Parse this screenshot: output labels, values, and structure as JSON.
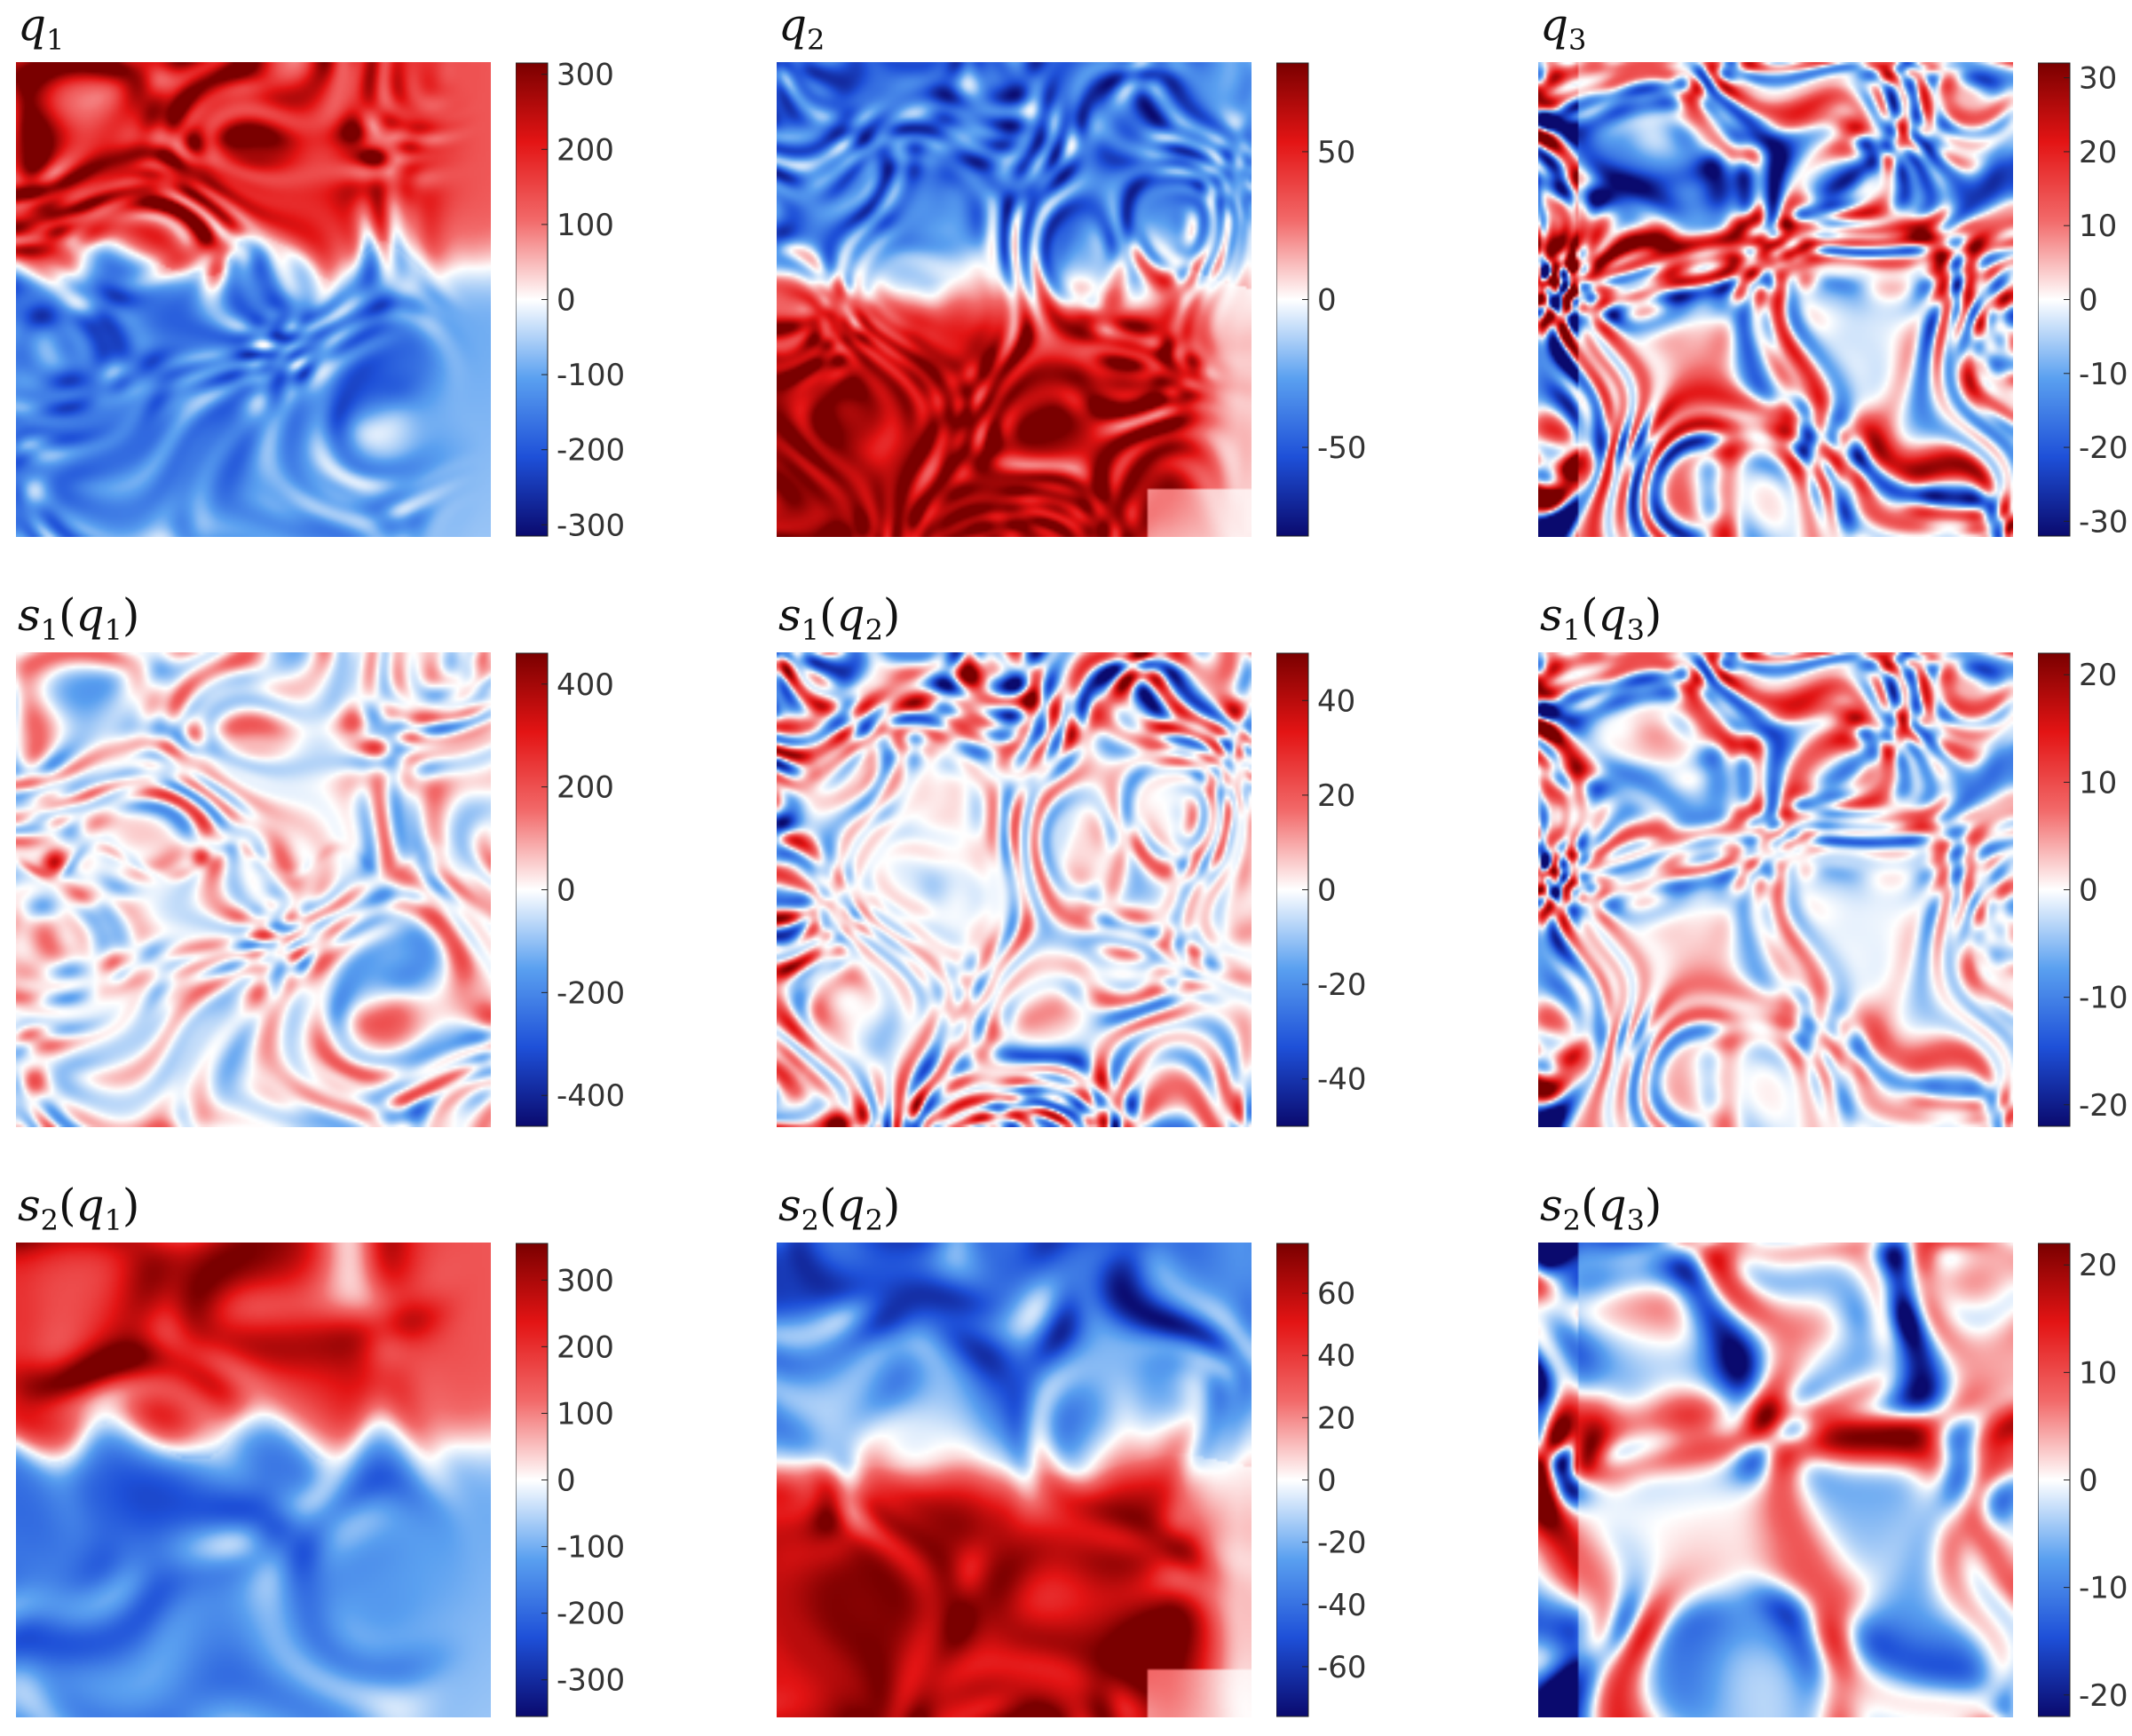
{
  "colormap": {
    "name": "seismic-like diverging",
    "stops": [
      "#0a0a6e",
      "#1e50d8",
      "#5aa0f0",
      "#ffffff",
      "#f26a6a",
      "#e31414",
      "#7a0000"
    ]
  },
  "chart_data": [
    {
      "id": "q1",
      "type": "heatmap",
      "title": "q1",
      "title_main": "q",
      "title_sub": "1",
      "clim": [
        -315,
        315
      ],
      "ticks": [
        300,
        200,
        100,
        0,
        -100,
        -200,
        -300
      ],
      "tick_labels": [
        "300",
        "200",
        "100",
        "0",
        "-100",
        "-200",
        "-300"
      ],
      "pattern": "upper-positive-band",
      "detail": "fine"
    },
    {
      "id": "q2",
      "type": "heatmap",
      "title": "q2",
      "title_main": "q",
      "title_sub": "2",
      "clim": [
        -80,
        80
      ],
      "ticks": [
        50,
        0,
        -50
      ],
      "tick_labels": [
        "50",
        "0",
        "-50"
      ],
      "pattern": "upper-negative-lower-positive",
      "detail": "fine"
    },
    {
      "id": "q3",
      "type": "heatmap",
      "title": "q3",
      "title_main": "q",
      "title_sub": "3",
      "clim": [
        -32,
        32
      ],
      "ticks": [
        30,
        20,
        10,
        0,
        -10,
        -20,
        -30
      ],
      "tick_labels": [
        "30",
        "20",
        "10",
        "0",
        "-10",
        "-20",
        "-30"
      ],
      "pattern": "mixed-eddies",
      "detail": "fine"
    },
    {
      "id": "s1q1",
      "type": "heatmap",
      "title": "s1(q1)",
      "title_main": "s",
      "title_sub": "1",
      "title_arg": "q",
      "title_arg_sub": "1",
      "clim": [
        -460,
        460
      ],
      "ticks": [
        400,
        200,
        0,
        -200,
        -400
      ],
      "tick_labels": [
        "400",
        "200",
        "0",
        "-200",
        "-400"
      ],
      "pattern": "small-scale-weak",
      "detail": "fine"
    },
    {
      "id": "s1q2",
      "type": "heatmap",
      "title": "s1(q2)",
      "title_main": "s",
      "title_sub": "1",
      "title_arg": "q",
      "title_arg_sub": "2",
      "clim": [
        -50,
        50
      ],
      "ticks": [
        40,
        20,
        0,
        -20,
        -40
      ],
      "tick_labels": [
        "40",
        "20",
        "0",
        "-20",
        "-40"
      ],
      "pattern": "small-scale-edges",
      "detail": "fine"
    },
    {
      "id": "s1q3",
      "type": "heatmap",
      "title": "s1(q3)",
      "title_main": "s",
      "title_sub": "1",
      "title_arg": "q",
      "title_arg_sub": "3",
      "clim": [
        -22,
        22
      ],
      "ticks": [
        20,
        10,
        0,
        -10,
        -20
      ],
      "tick_labels": [
        "20",
        "10",
        "0",
        "-10",
        "-20"
      ],
      "pattern": "small-scale-leftwall",
      "detail": "fine"
    },
    {
      "id": "s2q1",
      "type": "heatmap",
      "title": "s2(q1)",
      "title_main": "s",
      "title_sub": "2",
      "title_arg": "q",
      "title_arg_sub": "1",
      "clim": [
        -355,
        355
      ],
      "ticks": [
        300,
        200,
        100,
        0,
        -100,
        -200,
        -300
      ],
      "tick_labels": [
        "300",
        "200",
        "100",
        "0",
        "-100",
        "-200",
        "-300"
      ],
      "pattern": "upper-positive-band",
      "detail": "smooth"
    },
    {
      "id": "s2q2",
      "type": "heatmap",
      "title": "s2(q2)",
      "title_main": "s",
      "title_sub": "2",
      "title_arg": "q",
      "title_arg_sub": "2",
      "clim": [
        -76,
        76
      ],
      "ticks": [
        60,
        40,
        20,
        0,
        -20,
        -40,
        -60
      ],
      "tick_labels": [
        "60",
        "40",
        "20",
        "0",
        "-20",
        "-40",
        "-60"
      ],
      "pattern": "upper-negative-lower-positive",
      "detail": "smooth"
    },
    {
      "id": "s2q3",
      "type": "heatmap",
      "title": "s2(q3)",
      "title_main": "s",
      "title_sub": "2",
      "title_arg": "q",
      "title_arg_sub": "3",
      "clim": [
        -22,
        22
      ],
      "ticks": [
        20,
        10,
        0,
        -10,
        -20
      ],
      "tick_labels": [
        "20",
        "10",
        "0",
        "-10",
        "-20"
      ],
      "pattern": "mixed-eddies",
      "detail": "smooth"
    }
  ]
}
